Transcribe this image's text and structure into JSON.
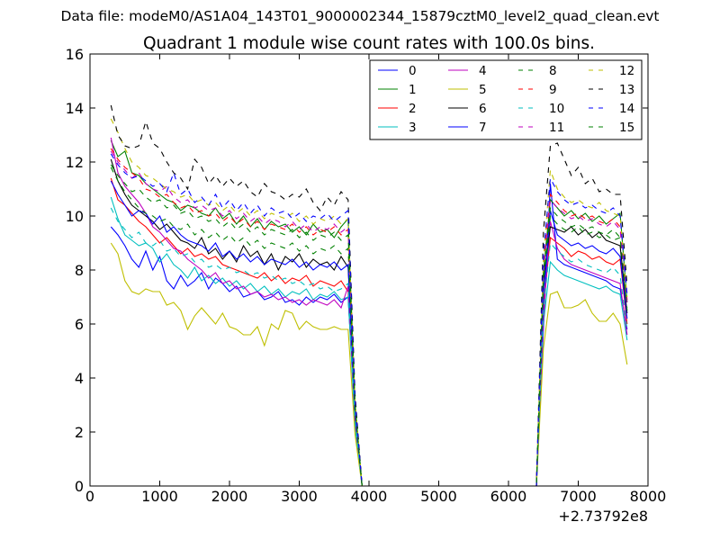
{
  "chart_data": {
    "type": "line",
    "suptitle": "Data file: modeM0/AS1A04_143T01_9000002344_15879cztM0_level2_quad_clean.evt",
    "title": "Quadrant 1 module wise count rates with 100.0s bins.",
    "xlabel": "",
    "ylabel": "",
    "x_offset_label": "+2.73792e8",
    "xlim": [
      0,
      8000
    ],
    "ylim": [
      0,
      16
    ],
    "x_ticks": [
      0,
      1000,
      2000,
      3000,
      4000,
      5000,
      6000,
      7000,
      8000
    ],
    "y_ticks": [
      0,
      2,
      4,
      6,
      8,
      10,
      12,
      14,
      16
    ],
    "grid": false,
    "legend_position": "top-right",
    "x": [
      300,
      400,
      500,
      600,
      700,
      800,
      900,
      1000,
      1100,
      1200,
      1300,
      1400,
      1500,
      1600,
      1700,
      1800,
      1900,
      2000,
      2100,
      2200,
      2300,
      2400,
      2500,
      2600,
      2700,
      2800,
      2900,
      3000,
      3100,
      3200,
      3300,
      3400,
      3500,
      3600,
      3700,
      3800,
      3900,
      4000,
      6400,
      6500,
      6600,
      6700,
      6800,
      6900,
      7000,
      7100,
      7200,
      7300,
      7400,
      7500,
      7600,
      7700
    ],
    "series": [
      {
        "name": "0",
        "color": "#0000ff",
        "dash": "solid",
        "values": [
          9.6,
          9.3,
          8.9,
          8.4,
          8.1,
          8.7,
          8.0,
          8.5,
          7.6,
          7.3,
          7.8,
          7.4,
          7.6,
          7.9,
          7.3,
          7.7,
          7.5,
          7.2,
          7.4,
          7.0,
          7.1,
          7.2,
          6.9,
          7.0,
          7.2,
          6.8,
          6.9,
          6.7,
          7.0,
          6.8,
          7.0,
          6.9,
          7.1,
          6.8,
          7.0,
          2.4,
          0,
          0,
          0,
          5.8,
          11.2,
          8.4,
          8.2,
          8.1,
          8.0,
          7.9,
          7.8,
          7.7,
          7.6,
          7.4,
          7.3,
          5.8
        ]
      },
      {
        "name": "1",
        "color": "#008000",
        "dash": "solid",
        "values": [
          12.8,
          12.2,
          12.4,
          11.6,
          11.5,
          11.2,
          11.0,
          10.8,
          10.6,
          10.5,
          10.2,
          10.4,
          10.3,
          10.1,
          10.0,
          10.3,
          9.9,
          10.1,
          9.7,
          10.0,
          9.6,
          9.9,
          9.5,
          9.8,
          9.6,
          9.7,
          9.4,
          9.6,
          9.3,
          9.7,
          9.4,
          9.5,
          9.2,
          9.6,
          9.9,
          3.0,
          0,
          0,
          0,
          7.9,
          10.6,
          10.3,
          10.0,
          10.2,
          9.9,
          10.1,
          9.8,
          10.0,
          9.7,
          9.9,
          10.1,
          6.8
        ]
      },
      {
        "name": "2",
        "color": "#ff0000",
        "dash": "solid",
        "values": [
          11.4,
          10.6,
          10.4,
          10.1,
          9.8,
          9.6,
          9.3,
          9.0,
          9.2,
          8.9,
          8.6,
          8.8,
          8.5,
          8.6,
          8.4,
          8.5,
          8.2,
          8.1,
          8.0,
          7.9,
          7.8,
          7.7,
          7.9,
          7.6,
          7.8,
          7.5,
          7.7,
          7.6,
          7.8,
          7.4,
          7.6,
          7.5,
          7.4,
          7.6,
          7.2,
          2.6,
          0,
          0,
          0,
          6.6,
          9.2,
          9.0,
          8.8,
          8.5,
          8.7,
          8.6,
          8.4,
          8.5,
          8.3,
          8.2,
          8.4,
          6.0
        ]
      },
      {
        "name": "3",
        "color": "#00bfbf",
        "dash": "solid",
        "values": [
          10.7,
          9.9,
          9.3,
          9.1,
          8.9,
          9.0,
          8.8,
          8.3,
          8.6,
          8.2,
          8.0,
          7.7,
          8.1,
          7.6,
          7.8,
          7.5,
          7.7,
          7.4,
          7.6,
          7.3,
          7.5,
          7.2,
          7.4,
          7.1,
          7.3,
          7.0,
          7.2,
          7.1,
          7.3,
          6.9,
          7.1,
          7.0,
          7.2,
          6.9,
          7.0,
          2.2,
          0,
          0,
          0,
          6.0,
          8.3,
          8.0,
          7.8,
          7.7,
          7.6,
          7.5,
          7.4,
          7.3,
          7.4,
          7.2,
          7.1,
          5.4
        ]
      },
      {
        "name": "4",
        "color": "#bf00bf",
        "dash": "solid",
        "values": [
          12.9,
          11.6,
          11.1,
          10.8,
          10.5,
          10.1,
          9.6,
          9.4,
          9.1,
          8.8,
          8.7,
          8.4,
          8.2,
          8.0,
          7.7,
          7.9,
          7.5,
          7.6,
          7.3,
          7.4,
          7.1,
          7.2,
          7.0,
          7.1,
          6.9,
          7.0,
          6.8,
          6.9,
          6.7,
          6.9,
          6.8,
          6.7,
          6.9,
          6.6,
          7.4,
          2.5,
          0,
          0,
          0,
          6.2,
          9.8,
          8.8,
          8.4,
          8.2,
          8.1,
          8.0,
          7.9,
          7.8,
          7.7,
          7.6,
          7.5,
          5.6
        ]
      },
      {
        "name": "5",
        "color": "#bfbf00",
        "dash": "solid",
        "values": [
          9.0,
          8.6,
          7.6,
          7.2,
          7.1,
          7.3,
          7.2,
          7.2,
          6.7,
          6.8,
          6.5,
          5.8,
          6.3,
          6.6,
          6.3,
          6.0,
          6.4,
          5.9,
          5.8,
          5.6,
          5.6,
          5.9,
          5.2,
          6.0,
          5.8,
          6.5,
          6.4,
          5.8,
          6.1,
          5.9,
          5.8,
          5.8,
          5.9,
          5.8,
          5.8,
          1.9,
          0,
          0,
          0,
          5.1,
          7.1,
          7.2,
          6.6,
          6.6,
          6.7,
          6.9,
          6.4,
          6.1,
          6.1,
          6.4,
          6.0,
          4.5
        ]
      },
      {
        "name": "6",
        "color": "#000000",
        "dash": "solid",
        "values": [
          12.1,
          11.3,
          10.8,
          10.4,
          10.2,
          10.0,
          9.8,
          9.5,
          9.7,
          9.4,
          9.1,
          9.0,
          8.8,
          9.2,
          8.6,
          8.8,
          8.4,
          8.7,
          8.3,
          8.9,
          8.5,
          8.7,
          8.2,
          8.6,
          8.0,
          8.5,
          8.3,
          8.6,
          8.1,
          8.4,
          8.2,
          8.3,
          8.0,
          8.5,
          8.1,
          2.8,
          0,
          0,
          0,
          7.6,
          9.6,
          9.5,
          9.4,
          9.6,
          9.3,
          9.5,
          9.2,
          9.4,
          9.1,
          9.0,
          8.9,
          6.4
        ]
      },
      {
        "name": "7",
        "color": "#0000ff",
        "dash": "solid",
        "values": [
          11.3,
          10.8,
          10.4,
          10.0,
          10.2,
          10.1,
          9.7,
          10.0,
          9.4,
          9.6,
          9.3,
          9.1,
          9.0,
          8.9,
          8.7,
          9.0,
          8.5,
          8.7,
          8.4,
          8.6,
          8.3,
          8.5,
          8.2,
          8.4,
          8.3,
          8.2,
          8.4,
          8.1,
          8.3,
          8.0,
          8.2,
          8.1,
          8.3,
          8.0,
          8.2,
          2.7,
          0,
          0,
          0,
          7.0,
          10.2,
          9.3,
          9.1,
          8.9,
          9.0,
          8.8,
          8.9,
          8.7,
          8.6,
          8.8,
          8.5,
          6.2
        ]
      },
      {
        "name": "8",
        "color": "#008000",
        "dash": "dashed",
        "values": [
          11.8,
          11.3,
          10.9,
          10.6,
          10.3,
          10.1,
          10.0,
          9.8,
          9.9,
          9.6,
          9.5,
          9.7,
          9.3,
          9.5,
          9.2,
          9.4,
          9.1,
          9.3,
          9.0,
          9.2,
          8.9,
          9.1,
          8.8,
          9.0,
          8.9,
          8.8,
          9.0,
          8.7,
          8.9,
          8.6,
          8.8,
          8.7,
          8.9,
          8.6,
          8.8,
          2.9,
          0,
          0,
          0,
          7.5,
          10.0,
          9.7,
          9.5,
          9.4,
          9.6,
          9.3,
          9.4,
          9.2,
          9.3,
          9.1,
          9.2,
          6.6
        ]
      },
      {
        "name": "9",
        "color": "#ff0000",
        "dash": "dashed",
        "values": [
          12.5,
          12.1,
          11.8,
          11.6,
          11.4,
          11.0,
          10.9,
          10.7,
          10.8,
          10.5,
          10.3,
          10.4,
          10.1,
          10.2,
          10.0,
          10.1,
          9.8,
          10.0,
          9.7,
          9.9,
          9.6,
          9.8,
          9.5,
          9.7,
          9.6,
          9.5,
          9.7,
          9.4,
          9.6,
          9.3,
          9.5,
          9.4,
          9.6,
          9.3,
          9.5,
          3.1,
          0,
          0,
          0,
          8.2,
          10.8,
          10.5,
          10.2,
          10.0,
          10.1,
          9.9,
          10.0,
          9.8,
          9.7,
          9.9,
          9.6,
          6.9
        ]
      },
      {
        "name": "10",
        "color": "#00bfbf",
        "dash": "dashed",
        "values": [
          10.3,
          9.8,
          9.5,
          9.2,
          9.4,
          9.0,
          8.9,
          9.1,
          8.7,
          8.8,
          8.5,
          8.6,
          8.3,
          8.4,
          8.1,
          8.2,
          8.0,
          8.1,
          7.9,
          8.0,
          7.8,
          7.9,
          7.7,
          7.8,
          7.6,
          7.7,
          7.5,
          7.6,
          7.4,
          7.5,
          7.3,
          7.4,
          7.2,
          7.3,
          7.5,
          2.4,
          0,
          0,
          0,
          6.5,
          9.0,
          8.7,
          8.5,
          8.3,
          8.4,
          8.2,
          8.1,
          8.0,
          7.9,
          8.1,
          7.8,
          5.8
        ]
      },
      {
        "name": "11",
        "color": "#bf00bf",
        "dash": "dashed",
        "values": [
          12.4,
          12.0,
          11.7,
          11.4,
          11.6,
          11.2,
          11.0,
          10.9,
          11.1,
          10.7,
          10.5,
          10.6,
          10.3,
          10.4,
          10.2,
          10.3,
          10.0,
          10.2,
          9.9,
          10.1,
          9.8,
          10.0,
          9.7,
          9.9,
          9.8,
          9.6,
          9.8,
          9.5,
          9.7,
          9.4,
          9.6,
          9.5,
          9.7,
          9.4,
          9.6,
          3.1,
          0,
          0,
          0,
          8.0,
          10.6,
          10.3,
          10.1,
          9.9,
          10.0,
          9.8,
          9.9,
          9.7,
          9.6,
          9.8,
          9.5,
          6.8
        ]
      },
      {
        "name": "12",
        "color": "#bfbf00",
        "dash": "dashed",
        "values": [
          13.6,
          13.1,
          12.5,
          12.0,
          11.8,
          11.5,
          11.4,
          11.2,
          11.0,
          10.9,
          10.7,
          10.8,
          10.5,
          10.6,
          10.4,
          10.5,
          10.2,
          10.4,
          10.1,
          10.3,
          10.0,
          10.2,
          9.9,
          10.1,
          10.0,
          9.9,
          10.1,
          9.8,
          10.0,
          9.7,
          9.9,
          9.8,
          10.0,
          9.7,
          9.9,
          3.2,
          0,
          0,
          0,
          8.4,
          11.7,
          11.0,
          10.7,
          10.5,
          10.6,
          10.4,
          10.3,
          10.5,
          10.2,
          10.1,
          10.0,
          7.0
        ]
      },
      {
        "name": "13",
        "color": "#000000",
        "dash": "dashed",
        "values": [
          14.1,
          13.0,
          12.6,
          12.5,
          12.6,
          13.5,
          12.7,
          12.5,
          12.0,
          11.6,
          11.4,
          11.0,
          12.1,
          11.8,
          11.2,
          11.5,
          11.1,
          11.4,
          11.1,
          11.3,
          10.9,
          10.7,
          11.2,
          10.9,
          10.8,
          10.6,
          10.8,
          10.7,
          11.0,
          10.5,
          10.2,
          10.7,
          10.4,
          10.9,
          10.6,
          3.4,
          0,
          0,
          0,
          9.4,
          12.6,
          12.7,
          12.1,
          11.5,
          11.8,
          11.2,
          11.4,
          10.9,
          11.0,
          10.8,
          10.8,
          7.4
        ]
      },
      {
        "name": "14",
        "color": "#0000ff",
        "dash": "dashed",
        "values": [
          12.3,
          11.9,
          11.6,
          11.4,
          11.5,
          11.3,
          11.1,
          11.2,
          10.9,
          11.6,
          10.8,
          11.0,
          10.5,
          10.7,
          10.4,
          10.8,
          10.3,
          10.6,
          10.2,
          10.5,
          10.1,
          10.4,
          10.0,
          10.3,
          10.1,
          10.2,
          9.9,
          10.1,
          9.8,
          10.0,
          9.9,
          10.1,
          9.8,
          10.0,
          10.2,
          3.2,
          0,
          0,
          0,
          8.6,
          11.4,
          10.9,
          10.6,
          10.4,
          10.5,
          10.3,
          10.4,
          10.2,
          10.1,
          10.3,
          10.0,
          7.1
        ]
      },
      {
        "name": "15",
        "color": "#008000",
        "dash": "dashed",
        "values": [
          11.9,
          11.5,
          11.2,
          10.9,
          11.0,
          10.7,
          10.5,
          10.6,
          10.3,
          10.4,
          10.1,
          10.2,
          9.9,
          10.0,
          9.8,
          9.9,
          9.6,
          9.8,
          9.5,
          9.7,
          9.4,
          9.6,
          9.3,
          9.5,
          9.4,
          9.3,
          9.5,
          9.2,
          9.4,
          9.1,
          9.3,
          9.2,
          9.4,
          9.1,
          9.3,
          3.0,
          0,
          0,
          0,
          7.8,
          10.3,
          10.0,
          9.8,
          9.6,
          9.7,
          9.5,
          9.6,
          9.4,
          9.3,
          9.5,
          9.2,
          6.5
        ]
      }
    ]
  }
}
